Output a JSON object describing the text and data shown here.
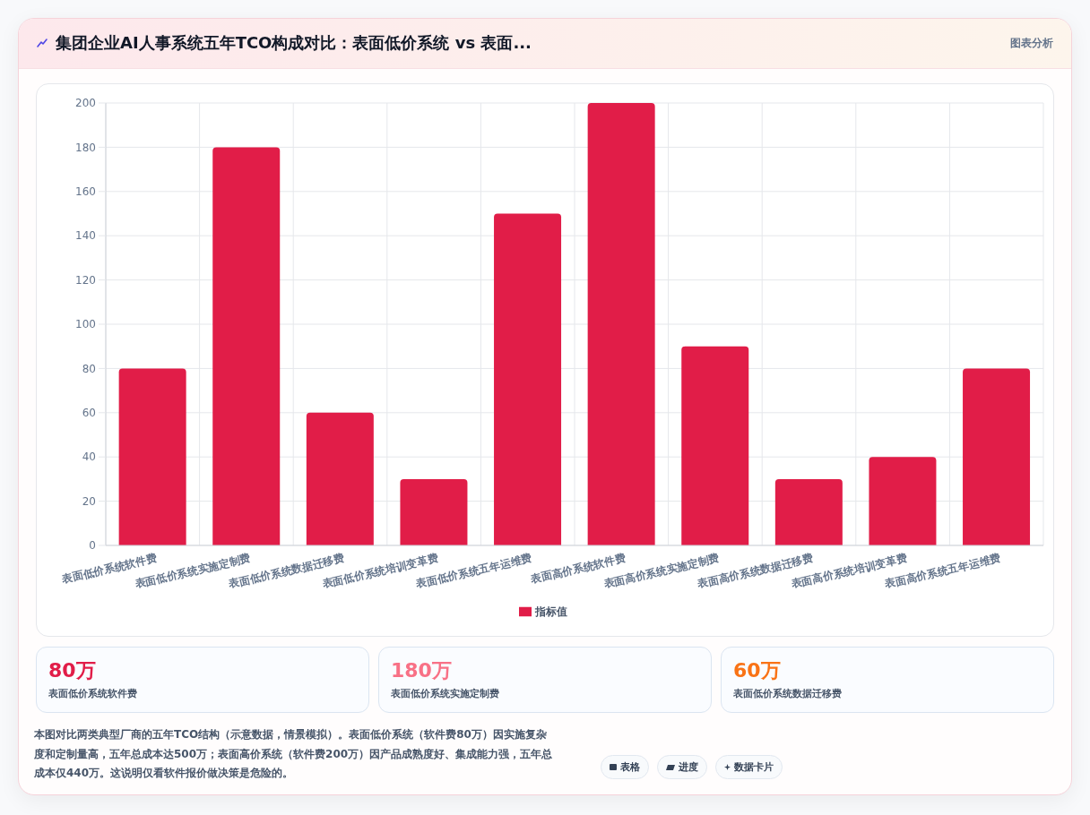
{
  "chart_data": {
    "type": "bar",
    "title": "集团企业AI人事系统五年TCO构成对比：表面低价系统 vs 表面...",
    "categories": [
      "表面低价系统软件费",
      "表面低价系统实施定制费",
      "表面低价系统数据迁移费",
      "表面低价系统培训变革费",
      "表面低价系统五年运维费",
      "表面高价系统软件费",
      "表面高价系统实施定制费",
      "表面高价系统数据迁移费",
      "表面高价系统培训变革费",
      "表面高价系统五年运维费"
    ],
    "series": [
      {
        "name": "指标值",
        "color": "#e11d48",
        "values": [
          80,
          180,
          60,
          30,
          150,
          200,
          90,
          30,
          40,
          80
        ]
      }
    ],
    "ylim": [
      0,
      200
    ],
    "yticks": [
      0,
      20,
      40,
      60,
      80,
      100,
      120,
      140,
      160,
      180,
      200
    ],
    "grid": true,
    "legend": "bottom",
    "annotations": [
      "图表分析",
      "80万",
      "表面低价系统软件费",
      "180万",
      "表面低价系统实施定制费",
      "60万",
      "表面低价系统数据迁移费",
      "本图对比两类典型厂商的五年TCO结构（示意数据，情景模拟）。表面低价系统（软件费80万）因实施复杂度和定制量高，五年总成本达500万；表面高价系统（软件费200万）因产品成熟度好、集成能力强，五年总成本仅440万。这说明仅看软件报价做决策是危险的。",
      "表格",
      "进度",
      "数据卡片"
    ]
  }
}
